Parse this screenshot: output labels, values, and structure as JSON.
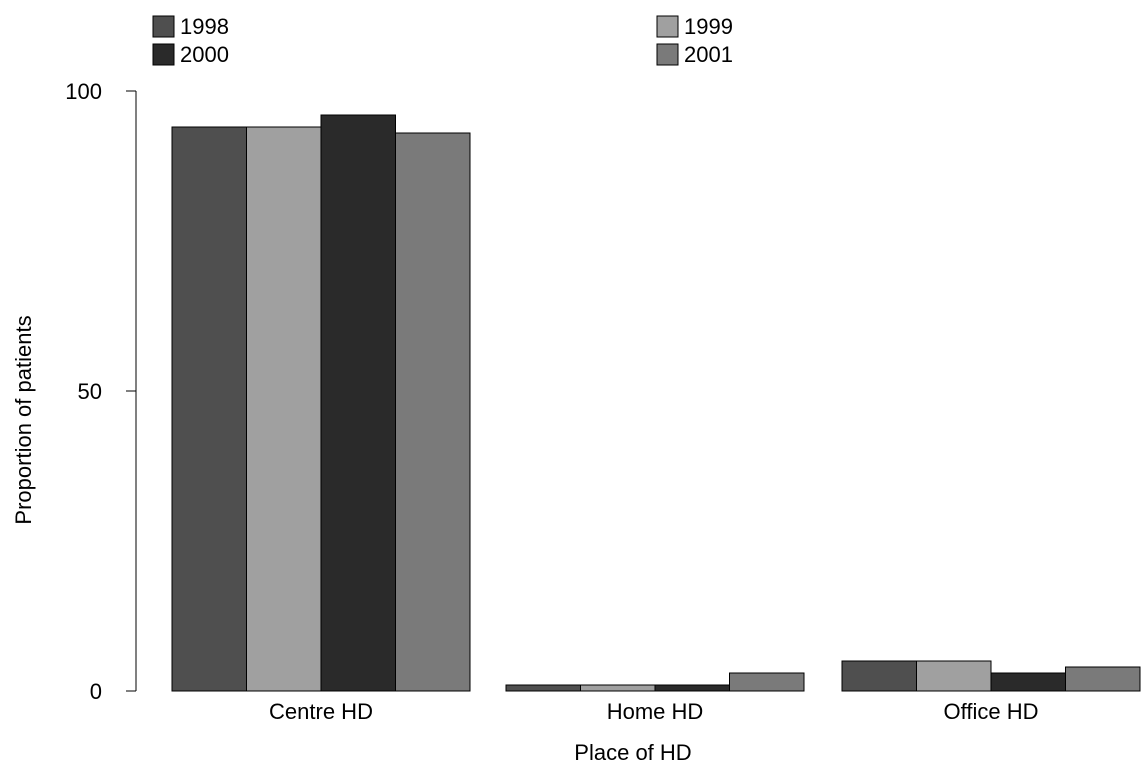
{
  "chart_data": {
    "type": "bar",
    "title": "",
    "xlabel": "Place of HD",
    "ylabel": "Proportion of patients",
    "ylim": [
      0,
      100
    ],
    "yticks": [
      0,
      50,
      100
    ],
    "categories": [
      "Centre HD",
      "Home HD",
      "Office HD"
    ],
    "series": [
      {
        "name": "1998",
        "color": "#4f4f4f",
        "values": [
          94,
          1,
          5
        ]
      },
      {
        "name": "1999",
        "color": "#a0a0a0",
        "values": [
          94,
          1,
          5
        ]
      },
      {
        "name": "2000",
        "color": "#2a2a2a",
        "values": [
          96,
          1,
          3
        ]
      },
      {
        "name": "2001",
        "color": "#7a7a7a",
        "values": [
          93,
          3,
          4
        ]
      }
    ],
    "grid": false,
    "legend_position": "top"
  }
}
